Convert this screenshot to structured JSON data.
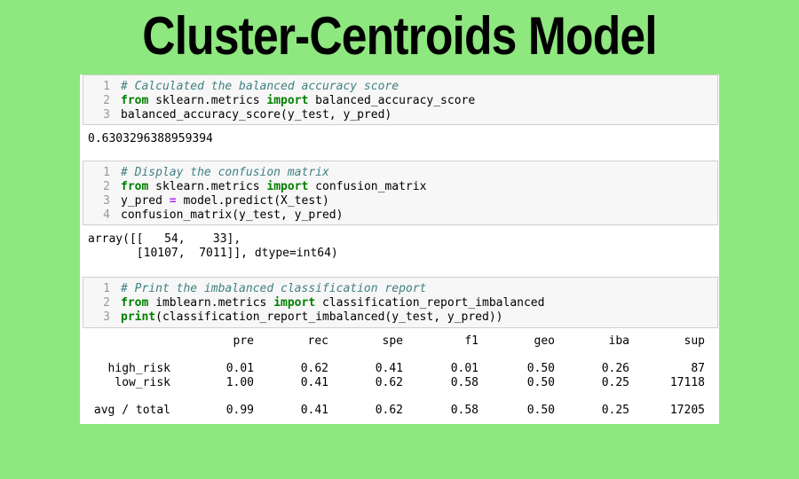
{
  "title": "Cluster-Centroids Model",
  "cells": [
    {
      "input": [
        {
          "n": "1",
          "parts": [
            {
              "t": "# Calculated the balanced accuracy score",
              "c": "cm"
            }
          ]
        },
        {
          "n": "2",
          "parts": [
            {
              "t": "from",
              "c": "kw"
            },
            {
              "t": " sklearn.metrics ",
              "c": ""
            },
            {
              "t": "import",
              "c": "kw"
            },
            {
              "t": " balanced_accuracy_score",
              "c": ""
            }
          ]
        },
        {
          "n": "3",
          "parts": [
            {
              "t": "balanced_accuracy_score(y_test, y_pred)",
              "c": ""
            }
          ]
        }
      ],
      "output": [
        "0.6303296388959394"
      ]
    },
    {
      "input": [
        {
          "n": "1",
          "parts": [
            {
              "t": "# Display the confusion matrix",
              "c": "cm"
            }
          ]
        },
        {
          "n": "2",
          "parts": [
            {
              "t": "from",
              "c": "kw"
            },
            {
              "t": " sklearn.metrics ",
              "c": ""
            },
            {
              "t": "import",
              "c": "kw"
            },
            {
              "t": " confusion_matrix",
              "c": ""
            }
          ]
        },
        {
          "n": "3",
          "parts": [
            {
              "t": "y_pred ",
              "c": ""
            },
            {
              "t": "=",
              "c": "op"
            },
            {
              "t": " model.predict(X_test)",
              "c": ""
            }
          ]
        },
        {
          "n": "4",
          "parts": [
            {
              "t": "confusion_matrix(y_test, y_pred)",
              "c": ""
            }
          ]
        }
      ],
      "output": [
        "array([[   54,    33],",
        "       [10107,  7011]], dtype=int64)"
      ]
    },
    {
      "input": [
        {
          "n": "1",
          "parts": [
            {
              "t": "# Print the imbalanced classification report",
              "c": "cm"
            }
          ]
        },
        {
          "n": "2",
          "parts": [
            {
              "t": "from",
              "c": "kw"
            },
            {
              "t": " imblearn.metrics ",
              "c": ""
            },
            {
              "t": "import",
              "c": "kw"
            },
            {
              "t": " classification_report_imbalanced",
              "c": ""
            }
          ]
        },
        {
          "n": "3",
          "parts": [
            {
              "t": "print",
              "c": "kw"
            },
            {
              "t": "(classification_report_imbalanced(y_test, y_pred))",
              "c": ""
            }
          ]
        }
      ]
    }
  ],
  "report": {
    "headers": [
      "pre",
      "rec",
      "spe",
      "f1",
      "geo",
      "iba",
      "sup"
    ],
    "rows": [
      {
        "label": "high_risk",
        "values": [
          "0.01",
          "0.62",
          "0.41",
          "0.01",
          "0.50",
          "0.26",
          "87"
        ]
      },
      {
        "label": "low_risk",
        "values": [
          "1.00",
          "0.41",
          "0.62",
          "0.58",
          "0.50",
          "0.25",
          "17118"
        ]
      },
      {
        "label": "avg / total",
        "values": [
          "0.99",
          "0.41",
          "0.62",
          "0.58",
          "0.50",
          "0.25",
          "17205"
        ]
      }
    ]
  }
}
